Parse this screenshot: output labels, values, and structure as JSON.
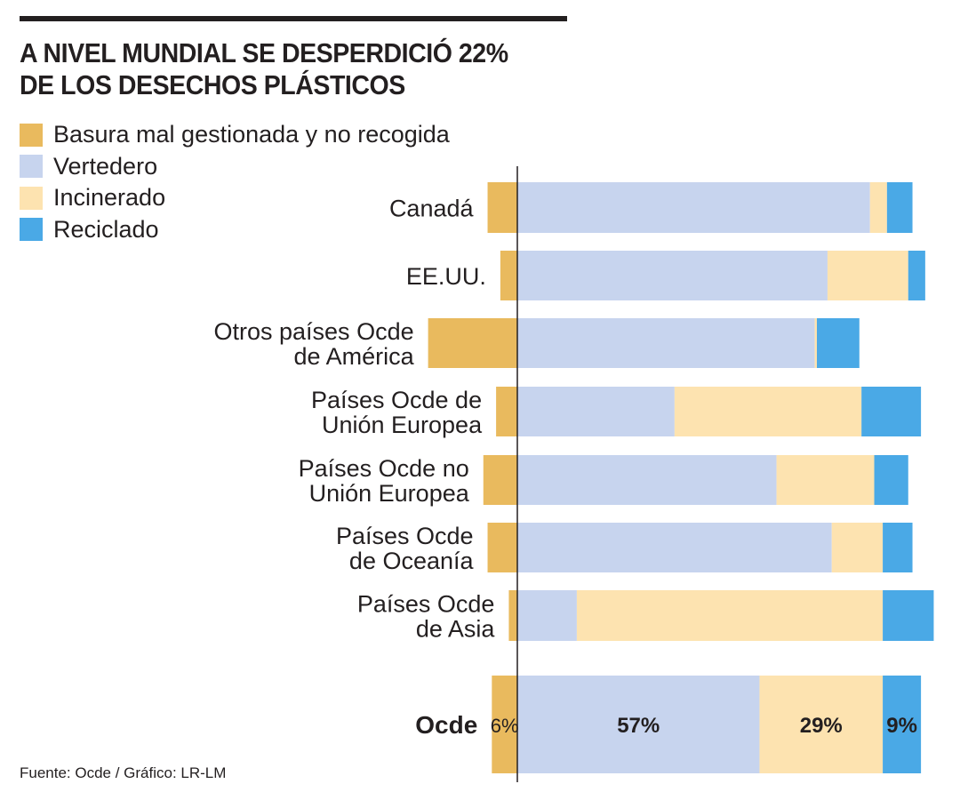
{
  "title": [
    "A NIVEL MUNDIAL SE DESPERDICIÓ 22%",
    "DE LOS DESECHOS PLÁSTICOS"
  ],
  "source": "Fuente: Ocde / Gráfico: LR-LM",
  "chart_data": {
    "type": "bar",
    "orientation": "horizontal-stacked",
    "title": "A NIVEL MUNDIAL SE DESPERDICIÓ 22% DE LOS DESECHOS PLÁSTICOS",
    "legend_position": "top-left",
    "grid": false,
    "unit": "%",
    "categories": [
      [
        "Canadá"
      ],
      [
        "EE.UU."
      ],
      [
        "Otros países Ocde",
        "de América"
      ],
      [
        "Países Ocde de",
        "Unión Europea"
      ],
      [
        "Países Ocde no",
        "Unión Europea"
      ],
      [
        "Países Ocde",
        "de Oceanía"
      ],
      [
        "Países Ocde",
        "de Asia"
      ],
      [
        "Ocde"
      ]
    ],
    "series": [
      {
        "name": "Basura mal gestionada y no recogida",
        "color": "#E9BA5E",
        "values": [
          7,
          4,
          21,
          5,
          8,
          7,
          2,
          6
        ],
        "direction": "left"
      },
      {
        "name": "Vertedero",
        "color": "#C7D4EE",
        "values": [
          83,
          73,
          70,
          37,
          61,
          74,
          14,
          57
        ]
      },
      {
        "name": "Incinerado",
        "color": "#FDE3B0",
        "values": [
          4,
          19,
          0.5,
          44,
          23,
          12,
          72,
          29
        ]
      },
      {
        "name": "Reciclado",
        "color": "#4AA9E6",
        "values": [
          6,
          4,
          10,
          14,
          8,
          7,
          12,
          9
        ]
      }
    ],
    "data_labels": {
      "Ocde": [
        "6%",
        "57%",
        "29%",
        "9%"
      ]
    }
  }
}
